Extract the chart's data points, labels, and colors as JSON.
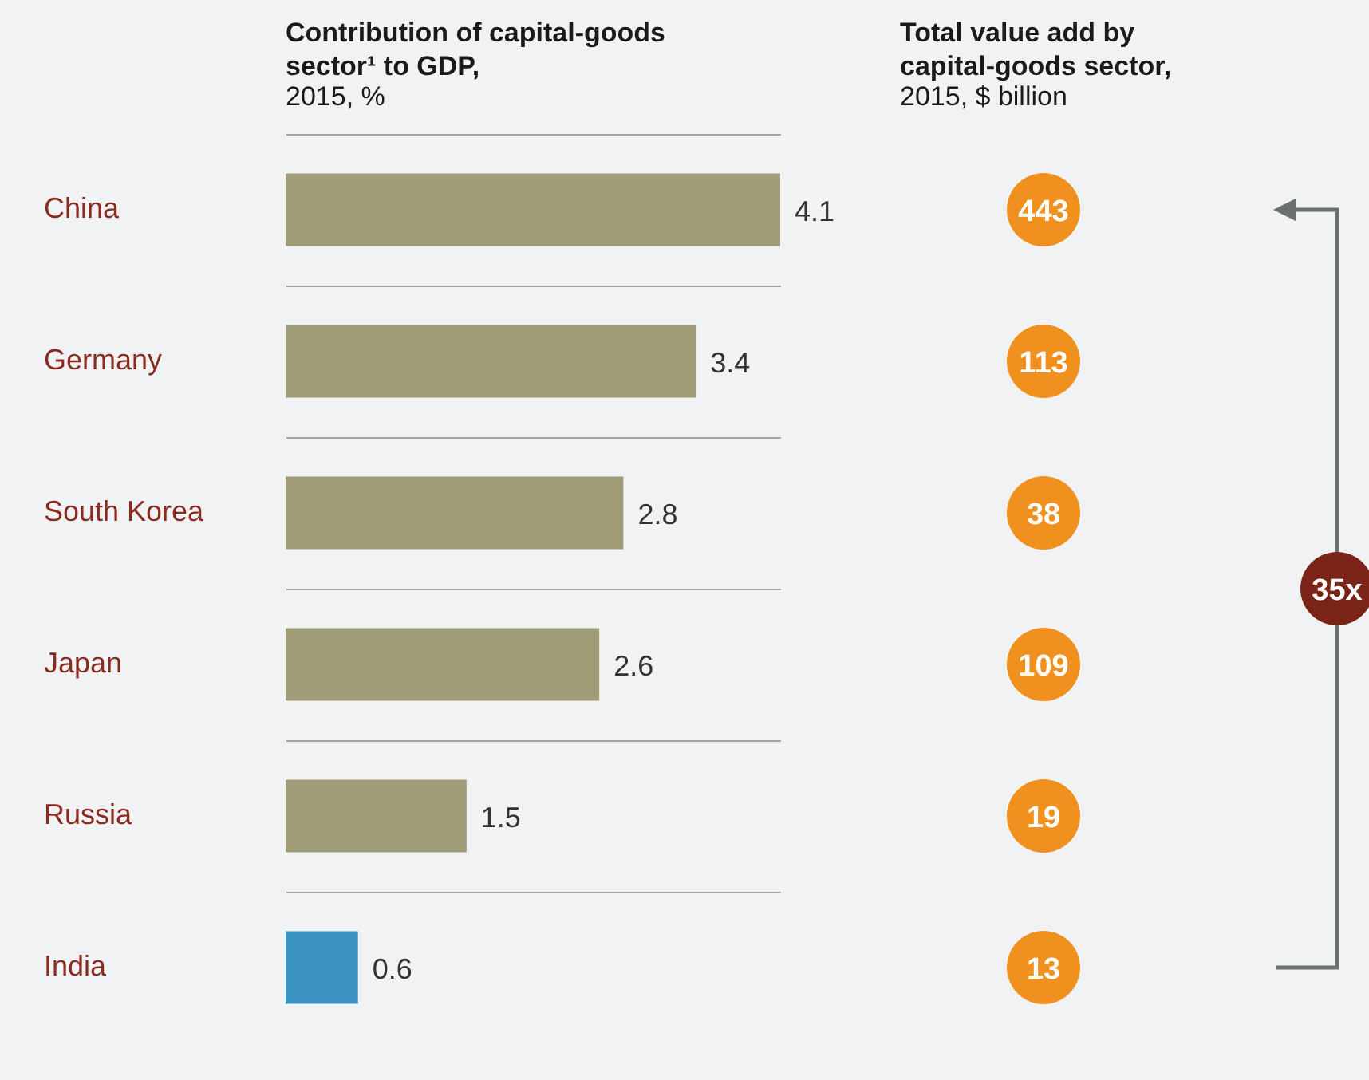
{
  "chart_data": [
    {
      "type": "bar",
      "orientation": "horizontal",
      "title": "Contribution of capital-goods sector¹ to GDP,",
      "subtitle": "2015, %",
      "categories": [
        "China",
        "Germany",
        "South Korea",
        "Japan",
        "Russia",
        "India"
      ],
      "values": [
        4.1,
        3.4,
        2.8,
        2.6,
        1.5,
        0.6
      ],
      "colors": [
        "#a09c78",
        "#a09c78",
        "#a09c78",
        "#a09c78",
        "#a09c78",
        "#3a93c3"
      ],
      "data_labels": true,
      "grid": "y",
      "tick_labels": "y"
    },
    {
      "type": "other",
      "title": "Total value add by capital-goods sector,",
      "subtitle": "2015, $ billion",
      "values": [
        443,
        113,
        38,
        109,
        19,
        13
      ],
      "color": "#f0901e",
      "data_labels": true,
      "annotations": [
        "35x"
      ]
    }
  ]
}
